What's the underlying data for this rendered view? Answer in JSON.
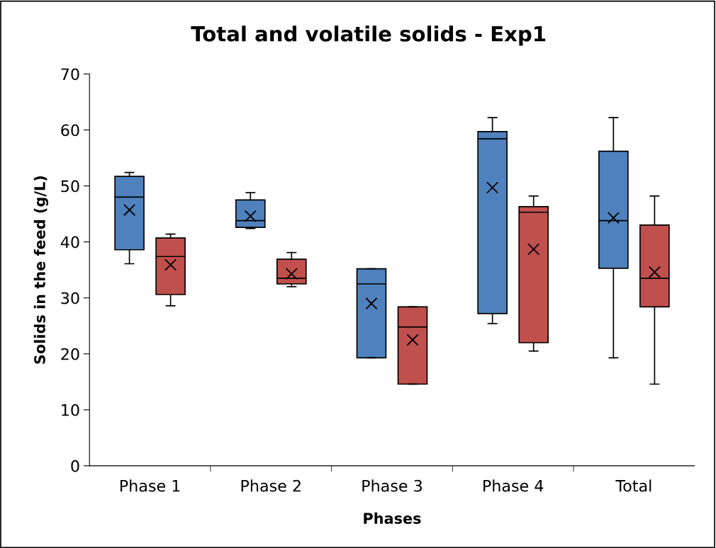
{
  "chart_data": {
    "type": "box",
    "title": "Total and volatile solids - Exp1",
    "xlabel": "Phases",
    "ylabel": "Solids in the feed (g/L)",
    "categories": [
      "Phase 1",
      "Phase 2",
      "Phase 3",
      "Phase 4",
      "Total"
    ],
    "ylim": [
      0,
      70
    ],
    "yticks": [
      0,
      10,
      20,
      30,
      40,
      50,
      60,
      70
    ],
    "grid": false,
    "legend": false,
    "series": [
      {
        "color": "#4f81bd",
        "boxes": [
          {
            "low": 36.1,
            "q1": 38.6,
            "median": 48.0,
            "q3": 51.7,
            "high": 52.4,
            "mean": 45.7
          },
          {
            "low": 42.4,
            "q1": 42.6,
            "median": 43.8,
            "q3": 47.5,
            "high": 48.8,
            "mean": 44.6
          },
          {
            "low": 19.3,
            "q1": 19.3,
            "median": 32.5,
            "q3": 35.2,
            "high": 35.2,
            "mean": 29.0
          },
          {
            "low": 25.4,
            "q1": 27.2,
            "median": 58.4,
            "q3": 59.7,
            "high": 62.2,
            "mean": 49.7
          },
          {
            "low": 19.3,
            "q1": 35.3,
            "median": 43.8,
            "q3": 56.2,
            "high": 62.2,
            "mean": 44.3
          }
        ]
      },
      {
        "color": "#c0504d",
        "boxes": [
          {
            "low": 28.6,
            "q1": 30.6,
            "median": 37.4,
            "q3": 40.7,
            "high": 41.4,
            "mean": 35.9
          },
          {
            "low": 32.0,
            "q1": 32.5,
            "median": 33.5,
            "q3": 36.9,
            "high": 38.1,
            "mean": 34.3
          },
          {
            "low": 14.6,
            "q1": 14.6,
            "median": 24.8,
            "q3": 28.4,
            "high": 28.4,
            "mean": 22.5
          },
          {
            "low": 20.5,
            "q1": 22.0,
            "median": 45.3,
            "q3": 46.3,
            "high": 48.2,
            "mean": 38.7
          },
          {
            "low": 14.6,
            "q1": 28.4,
            "median": 33.5,
            "q3": 43.0,
            "high": 48.2,
            "mean": 34.6
          }
        ]
      }
    ]
  }
}
